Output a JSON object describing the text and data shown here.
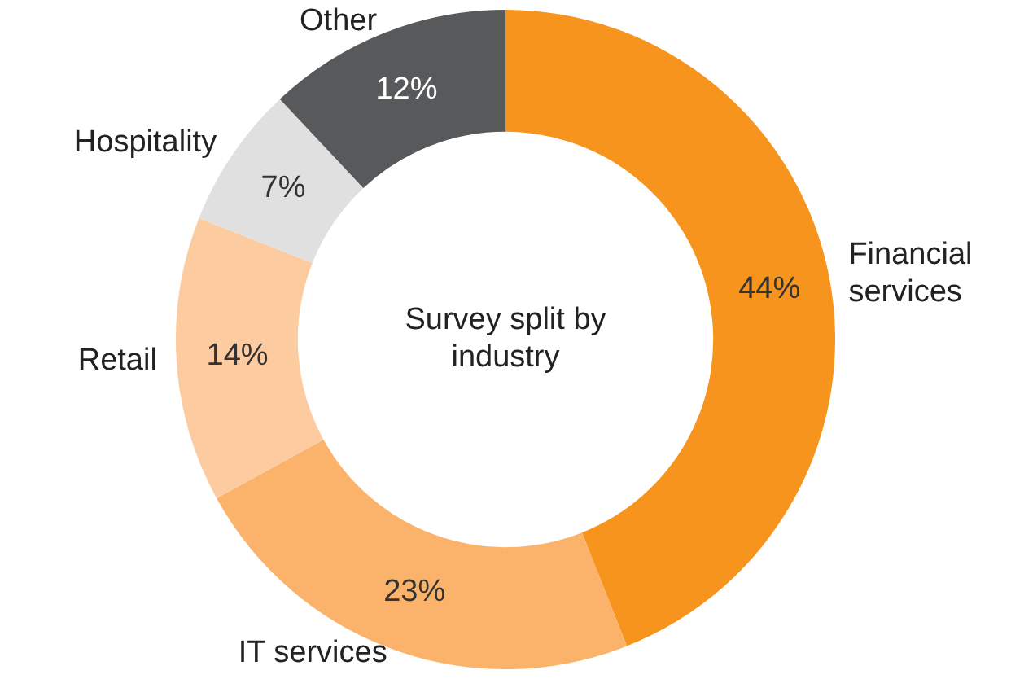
{
  "chart_data": {
    "type": "donut",
    "title": "Survey split by industry",
    "categories": [
      "Financial services",
      "IT services",
      "Retail",
      "Hospitality",
      "Other"
    ],
    "values": [
      44,
      23,
      14,
      7,
      12
    ],
    "value_labels": [
      "44%",
      "23%",
      "14%",
      "7%",
      "12%"
    ],
    "colors": [
      "#f7941d",
      "#fbb36b",
      "#fccba0",
      "#e0e0e0",
      "#58595b"
    ],
    "legend": false
  }
}
